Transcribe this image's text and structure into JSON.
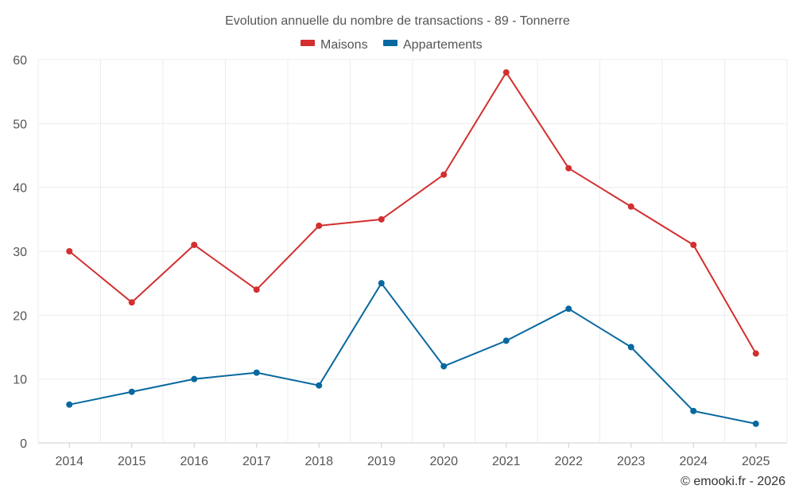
{
  "chart_data": {
    "type": "line",
    "title": "Evolution annuelle du nombre de transactions - 89 - Tonnerre",
    "categories": [
      "2014",
      "2015",
      "2016",
      "2017",
      "2018",
      "2019",
      "2020",
      "2021",
      "2022",
      "2023",
      "2024",
      "2025"
    ],
    "series": [
      {
        "name": "Maisons",
        "color": "#d32f2f",
        "values": [
          30,
          22,
          31,
          24,
          34,
          35,
          42,
          58,
          43,
          37,
          31,
          14
        ]
      },
      {
        "name": "Appartements",
        "color": "#0868a0",
        "values": [
          6,
          8,
          10,
          11,
          9,
          25,
          12,
          16,
          21,
          15,
          5,
          3
        ]
      }
    ],
    "ylim": [
      0,
      60
    ],
    "yticks": [
      0,
      10,
      20,
      30,
      40,
      50,
      60
    ],
    "grid": true,
    "legend": "top-center",
    "xlabel": "",
    "ylabel": ""
  },
  "credit": "© emooki.fr - 2026"
}
